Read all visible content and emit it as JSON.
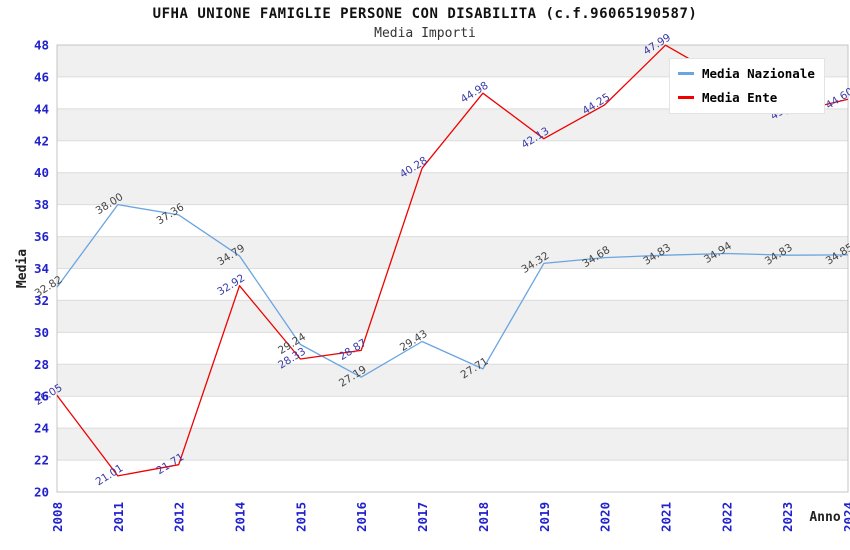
{
  "header": {
    "title": "UFHA UNIONE FAMIGLIE PERSONE CON DISABILITA (c.f.96065190587)",
    "subtitle": "Media Importi"
  },
  "legend": {
    "items": [
      {
        "label": "Media Nazionale",
        "color": "#69a5e1"
      },
      {
        "label": "Media Ente",
        "color": "#f00000"
      }
    ]
  },
  "chart_data": {
    "type": "line",
    "title": "UFHA UNIONE FAMIGLIE PERSONE CON DISABILITA (c.f.96065190587)",
    "subtitle": "Media Importi",
    "xlabel": "Anno",
    "ylabel": "Media",
    "ylim": [
      20,
      48
    ],
    "ytick_step": 2,
    "grid": true,
    "legend_position": "top-right",
    "categories": [
      "2008",
      "2011",
      "2012",
      "2014",
      "2015",
      "2016",
      "2017",
      "2018",
      "2019",
      "2020",
      "2021",
      "2022",
      "2023",
      "2024"
    ],
    "series": [
      {
        "name": "Media Nazionale",
        "color": "#69a5e1",
        "label_color": "#444444",
        "values": [
          32.82,
          38.0,
          37.36,
          34.79,
          29.24,
          27.19,
          29.43,
          27.71,
          34.32,
          34.68,
          34.83,
          34.94,
          34.83,
          34.85
        ],
        "labels": [
          "32.82",
          "38.00",
          "37.36",
          "34.79",
          "29.24",
          "27.19",
          "29.43",
          "27.71",
          "34.32",
          "34.68",
          "34.83",
          "34.94",
          "34.83",
          "34.85"
        ]
      },
      {
        "name": "Media Ente",
        "color": "#f00000",
        "label_color": "#3939a8",
        "values": [
          26.05,
          21.01,
          21.71,
          32.92,
          28.33,
          28.87,
          40.28,
          44.98,
          42.13,
          44.25,
          47.99,
          45.8,
          43.7,
          44.6
        ],
        "labels": [
          "26.05",
          "21.01",
          "21.71",
          "32.92",
          "28.33",
          "28.87",
          "40.28",
          "44.98",
          "42.13",
          "44.25",
          "47.99",
          null,
          "43.7",
          "44.60"
        ]
      }
    ],
    "style": {
      "band_colors": [
        "#ffffff",
        "#f0f0f0"
      ],
      "gridline_color": "#dcdcdc",
      "border_color": "#c4c4c4",
      "tick_color": "#2222cc",
      "axis_title_color": "#222222"
    }
  }
}
